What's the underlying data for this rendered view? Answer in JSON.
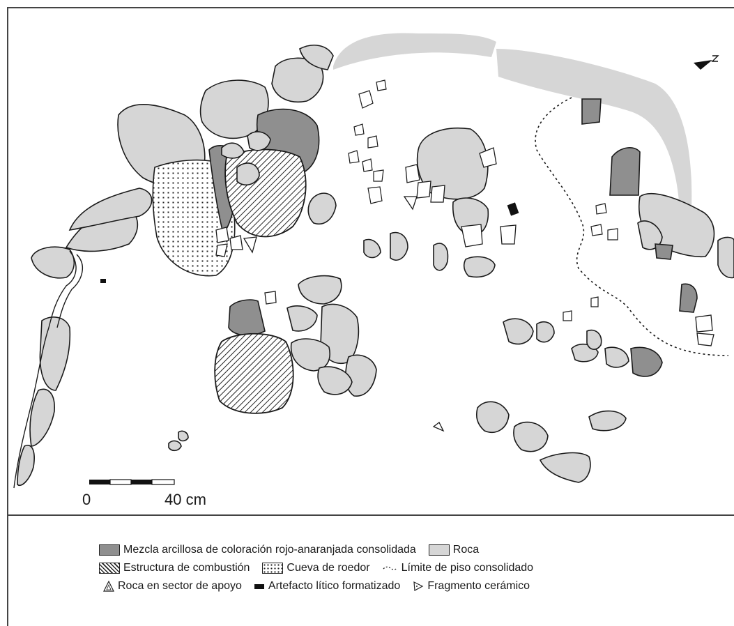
{
  "scale": {
    "start_label": "0",
    "end_label": "40 cm"
  },
  "north_arrow": {
    "label": "N",
    "icon": "north-arrow-icon"
  },
  "legend": {
    "clay": "Mezcla arcillosa de coloración rojo-anaranjada consolidada",
    "rock": "Roca",
    "combustion": "Estructura de combustión",
    "rodent_cave": "Cueva de roedor",
    "floor_limit": "Límite de piso consolidado",
    "support_rock": "Roca en sector de apoyo",
    "lithic": "Artefacto lítico formatizado",
    "ceramic": "Fragmento cerámico"
  },
  "colors": {
    "rock": "#d6d6d6",
    "clay": "#8f8f8f",
    "outline": "#1a1a1a"
  }
}
